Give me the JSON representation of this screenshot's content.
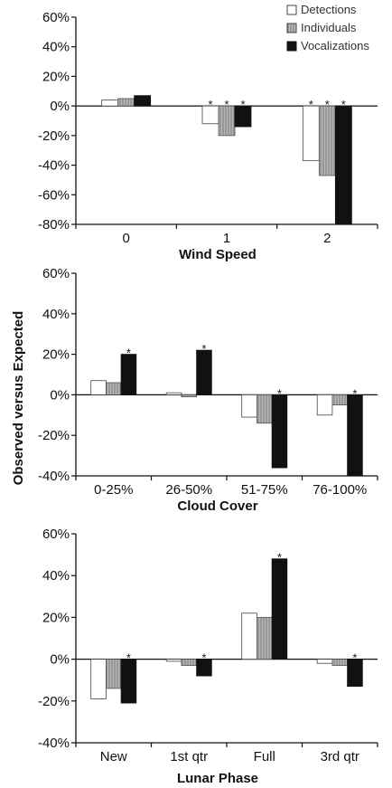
{
  "ylabel": "Observed versus Expected",
  "legend": {
    "placement": "top-right",
    "entries": [
      {
        "name": "Detections",
        "color": "#ffffff",
        "hatched": false
      },
      {
        "name": "Individuals",
        "color": "#b0b0b0",
        "hatched": true
      },
      {
        "name": "Vocalizations",
        "color": "#111111",
        "hatched": false
      }
    ]
  },
  "chart_data": [
    {
      "type": "bar",
      "xlabel": "Wind Speed",
      "categories": [
        "0",
        "1",
        "2"
      ],
      "ylim": [
        -80,
        60
      ],
      "yticks": [
        -80,
        -60,
        -40,
        -20,
        0,
        20,
        40,
        60
      ],
      "ytick_labels": [
        "-80%",
        "-60%",
        "-40%",
        "-20%",
        "0%",
        "20%",
        "40%",
        "60%"
      ],
      "series": [
        {
          "name": "Detections",
          "values": [
            4,
            -12,
            -37
          ]
        },
        {
          "name": "Individuals",
          "values": [
            5,
            -20,
            -47
          ]
        },
        {
          "name": "Vocalizations",
          "values": [
            7,
            -14,
            -80
          ]
        }
      ],
      "significant": [
        [
          false,
          true,
          true
        ],
        [
          false,
          true,
          true
        ],
        [
          false,
          true,
          true
        ]
      ],
      "significance_symbol": "*"
    },
    {
      "type": "bar",
      "xlabel": "Cloud Cover",
      "categories": [
        "0-25%",
        "26-50%",
        "51-75%",
        "76-100%"
      ],
      "ylim": [
        -40,
        60
      ],
      "yticks": [
        -40,
        -20,
        0,
        20,
        40,
        60
      ],
      "ytick_labels": [
        "-40%",
        "-20%",
        "0%",
        "20%",
        "40%",
        "60%"
      ],
      "series": [
        {
          "name": "Detections",
          "values": [
            7,
            1,
            -11,
            -10
          ]
        },
        {
          "name": "Individuals",
          "values": [
            6,
            -1,
            -14,
            -5
          ]
        },
        {
          "name": "Vocalizations",
          "values": [
            20,
            22,
            -36,
            -40
          ]
        }
      ],
      "significant": [
        [
          false,
          false,
          false,
          false
        ],
        [
          false,
          false,
          false,
          false
        ],
        [
          true,
          true,
          true,
          true
        ]
      ],
      "significance_symbol": "*"
    },
    {
      "type": "bar",
      "xlabel": "Lunar Phase",
      "categories": [
        "New",
        "1st qtr",
        "Full",
        "3rd qtr"
      ],
      "ylim": [
        -40,
        60
      ],
      "yticks": [
        -40,
        -20,
        0,
        20,
        40,
        60
      ],
      "ytick_labels": [
        "-40%",
        "-20%",
        "0%",
        "20%",
        "40%",
        "60%"
      ],
      "series": [
        {
          "name": "Detections",
          "values": [
            -19,
            -1,
            22,
            -2
          ]
        },
        {
          "name": "Individuals",
          "values": [
            -14,
            -3,
            20,
            -3
          ]
        },
        {
          "name": "Vocalizations",
          "values": [
            -21,
            -8,
            48,
            -13
          ]
        }
      ],
      "significant": [
        [
          false,
          false,
          false,
          false
        ],
        [
          false,
          false,
          false,
          false
        ],
        [
          true,
          true,
          true,
          true
        ]
      ],
      "significance_symbol": "*"
    }
  ]
}
